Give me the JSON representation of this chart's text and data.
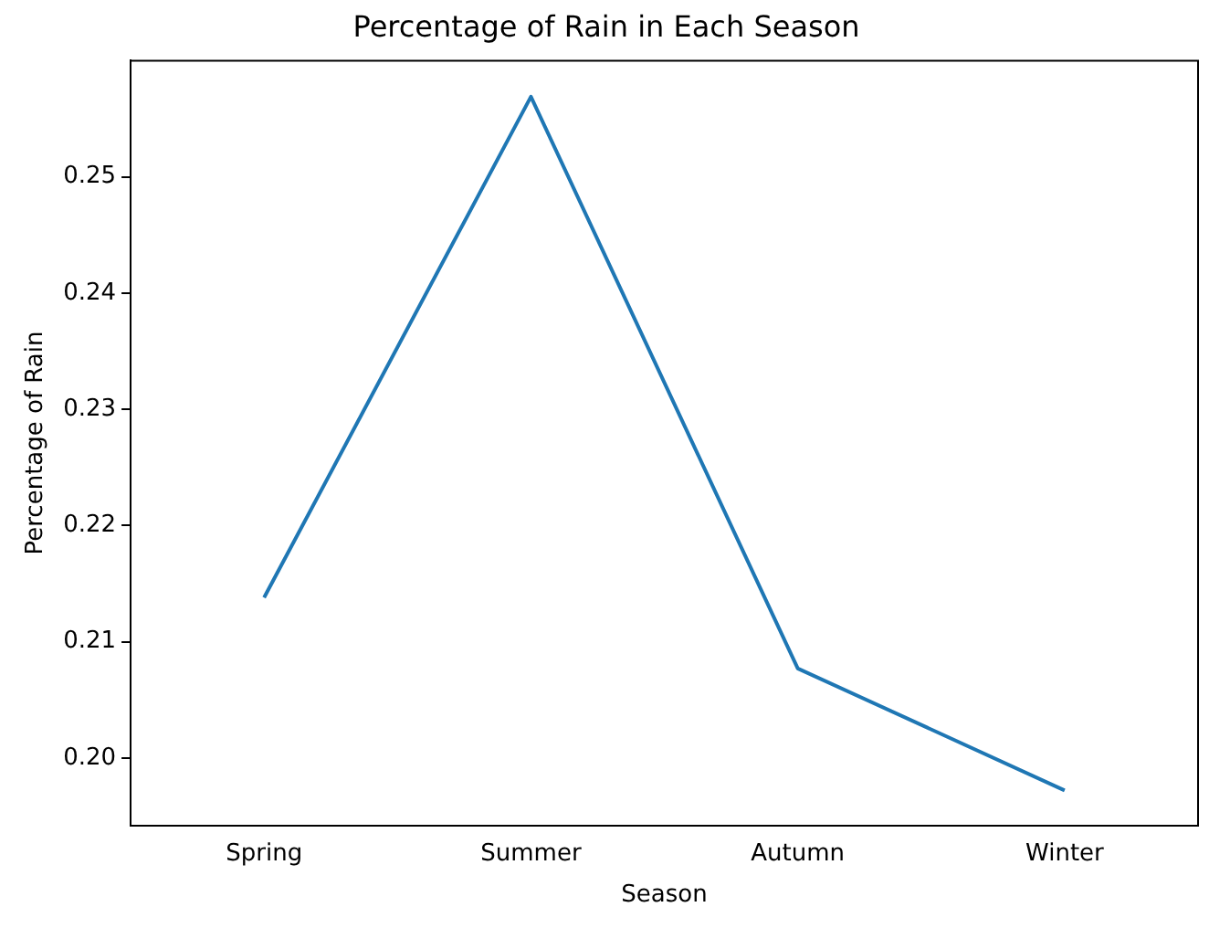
{
  "chart_data": {
    "type": "line",
    "title": "Percentage of Rain in Each Season",
    "xlabel": "Season",
    "ylabel": "Percentage of Rain",
    "categories": [
      "Spring",
      "Summer",
      "Autumn",
      "Winter"
    ],
    "series": [
      {
        "color": "#1f77b4",
        "values": [
          0.2138,
          0.2569,
          0.2077,
          0.1972
        ]
      }
    ],
    "ylim": [
      0.1942,
      0.26
    ],
    "yticks": [
      {
        "value": 0.2,
        "label": "0.20"
      },
      0.21,
      0.22,
      0.23,
      0.24,
      0.25
    ],
    "grid": false,
    "legend": false,
    "marker": "none",
    "line_style": "solid"
  }
}
